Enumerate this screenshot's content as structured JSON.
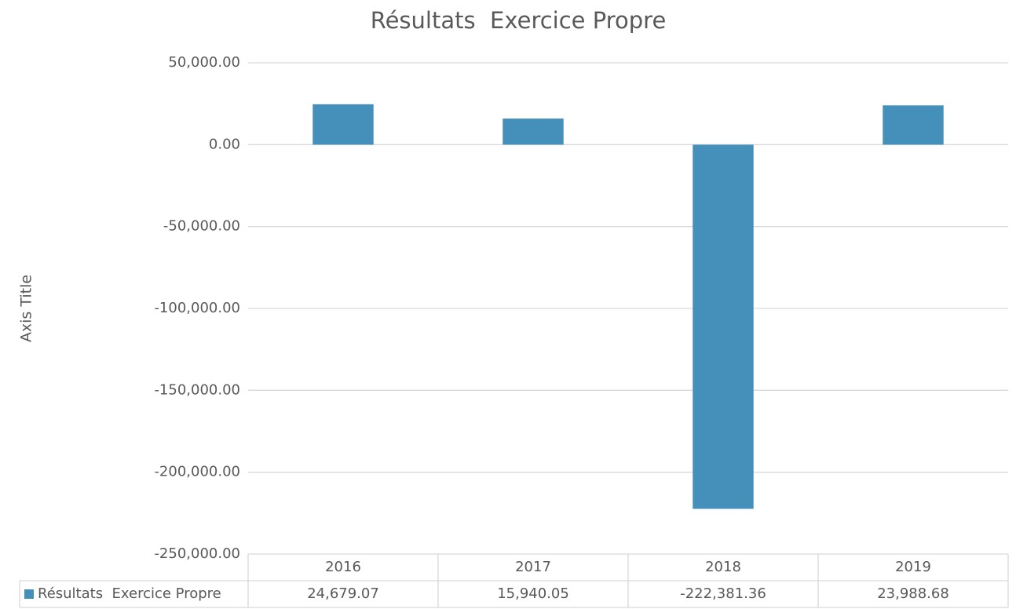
{
  "chart_data": {
    "type": "bar",
    "title": "Résultats  Exercice Propre",
    "y_axis_title": "Axis Title",
    "categories": [
      "2016",
      "2017",
      "2018",
      "2019"
    ],
    "series": [
      {
        "name": "Résultats  Exercice Propre",
        "color": "#4590bb",
        "values": [
          24679.07,
          15940.05,
          -222381.36,
          23988.68
        ],
        "value_labels": [
          "24,679.07",
          "15,940.05",
          "-222,381.36",
          "23,988.68"
        ]
      }
    ],
    "ylim": [
      -250000,
      50000
    ],
    "yticks": [
      {
        "value": 50000,
        "label": "50,000.00"
      },
      {
        "value": 0,
        "label": "0.00"
      },
      {
        "value": -50000,
        "label": "-50,000.00"
      },
      {
        "value": -100000,
        "label": "-100,000.00"
      },
      {
        "value": -150000,
        "label": "-150,000.00"
      },
      {
        "value": -200000,
        "label": "-200,000.00"
      },
      {
        "value": -250000,
        "label": "-250,000.00"
      }
    ],
    "grid": true,
    "data_table": true
  }
}
